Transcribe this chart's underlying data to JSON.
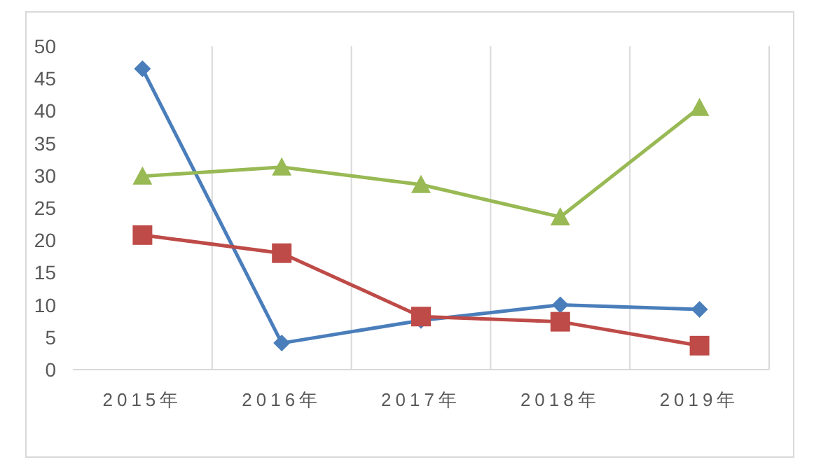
{
  "chart_data": {
    "type": "line",
    "categories": [
      "2015年",
      "2016年",
      "2017年",
      "2018年",
      "2019年"
    ],
    "series": [
      {
        "color": "#4a7ebb",
        "marker": "diamond",
        "values": [
          46.5,
          4.1,
          7.6,
          10.0,
          9.3
        ]
      },
      {
        "color": "#be4b48",
        "marker": "square",
        "values": [
          20.8,
          18.0,
          8.2,
          7.4,
          3.7
        ]
      },
      {
        "color": "#98b954",
        "marker": "triangle",
        "values": [
          29.9,
          31.3,
          28.6,
          23.6,
          40.5
        ]
      }
    ],
    "ylim": [
      0,
      50
    ],
    "yticks": [
      0,
      5,
      10,
      15,
      20,
      25,
      30,
      35,
      40,
      45,
      50
    ],
    "grid": "x"
  }
}
